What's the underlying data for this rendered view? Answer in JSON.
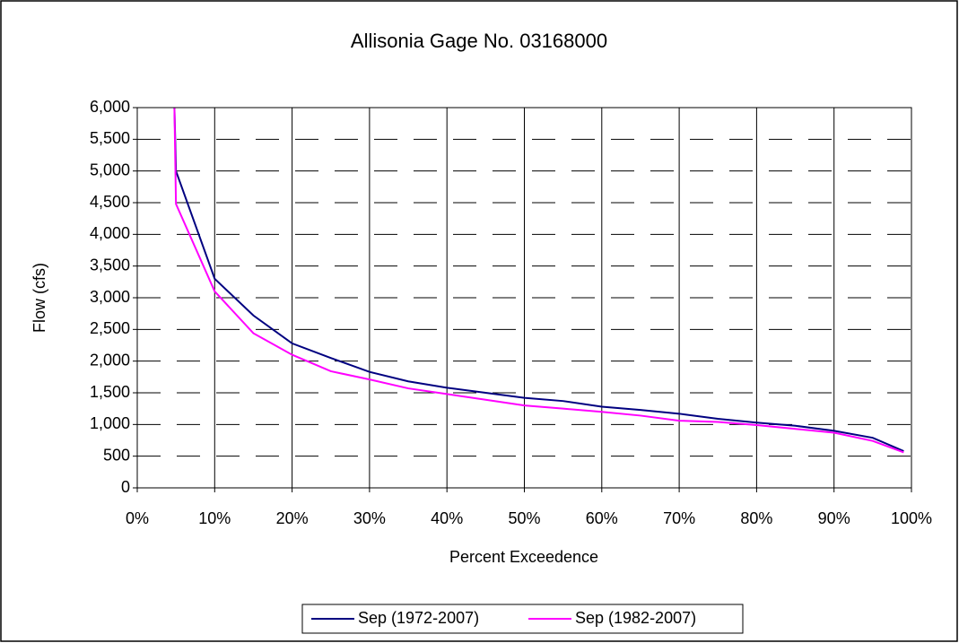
{
  "chart_data": {
    "type": "line",
    "title": "Allisonia Gage No. 03168000",
    "x_label": "Percent Exceedence",
    "y_label": "Flow (cfs)",
    "x": [
      4.8,
      5,
      10,
      15,
      20,
      25,
      30,
      35,
      40,
      45,
      50,
      55,
      60,
      65,
      70,
      75,
      80,
      85,
      90,
      95,
      99
    ],
    "series": [
      {
        "name": "Sep (1972-2007)",
        "color": "#000080",
        "values": [
          6000,
          5000,
          3300,
          2720,
          2280,
          2050,
          1830,
          1680,
          1580,
          1500,
          1420,
          1370,
          1280,
          1230,
          1170,
          1090,
          1030,
          980,
          900,
          790,
          580
        ]
      },
      {
        "name": "Sep (1982-2007)",
        "color": "#ff00ff",
        "values": [
          6000,
          4480,
          3100,
          2440,
          2100,
          1840,
          1710,
          1570,
          1480,
          1390,
          1300,
          1250,
          1200,
          1140,
          1060,
          1040,
          990,
          930,
          870,
          740,
          560
        ]
      }
    ],
    "xlim": [
      0,
      100
    ],
    "xticks": [
      {
        "value": 0,
        "label": "0%"
      },
      {
        "value": 10,
        "label": "10%"
      },
      {
        "value": 20,
        "label": "20%"
      },
      {
        "value": 30,
        "label": "30%"
      },
      {
        "value": 40,
        "label": "40%"
      },
      {
        "value": 50,
        "label": "50%"
      },
      {
        "value": 60,
        "label": "60%"
      },
      {
        "value": 70,
        "label": "70%"
      },
      {
        "value": 80,
        "label": "80%"
      },
      {
        "value": 90,
        "label": "90%"
      },
      {
        "value": 100,
        "label": "100%"
      }
    ],
    "ylim": [
      0,
      6000
    ],
    "yticks": [
      0,
      500,
      {
        "value": 1000,
        "label": "1,000"
      },
      {
        "value": 1500,
        "label": "1,500"
      },
      {
        "value": 2000,
        "label": "2,000"
      },
      {
        "value": 2500,
        "label": "2,500"
      },
      {
        "value": 3000,
        "label": "3,000"
      },
      {
        "value": 3500,
        "label": "3,500"
      },
      {
        "value": 4000,
        "label": "4,000"
      },
      {
        "value": 4500,
        "label": "4,500"
      },
      {
        "value": 5000,
        "label": "5,000"
      },
      {
        "value": 5500,
        "label": "5,500"
      },
      {
        "value": 6000,
        "label": "6,000"
      }
    ],
    "grid": true,
    "legend": "bottom"
  }
}
